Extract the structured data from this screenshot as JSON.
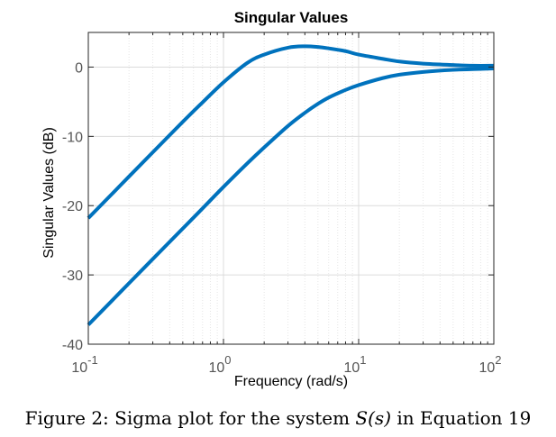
{
  "chart_data": {
    "type": "line",
    "title": "Singular Values",
    "xlabel": "Frequency (rad/s)",
    "ylabel": "Singular Values (dB)",
    "x_scale": "log",
    "xlim": [
      0.1,
      100
    ],
    "ylim": [
      -40,
      5
    ],
    "x_ticks": [
      {
        "value": 0.1,
        "base": "10",
        "exp": "-1"
      },
      {
        "value": 1,
        "base": "10",
        "exp": "0"
      },
      {
        "value": 10,
        "base": "10",
        "exp": "1"
      },
      {
        "value": 100,
        "base": "10",
        "exp": "2"
      }
    ],
    "y_ticks": [
      {
        "value": 0,
        "label": "0"
      },
      {
        "value": -10,
        "label": "-10"
      },
      {
        "value": -20,
        "label": "-20"
      },
      {
        "value": -30,
        "label": "-30"
      },
      {
        "value": -40,
        "label": "-40"
      }
    ],
    "grid": true,
    "minor_grid": true,
    "line_color": "#0072BD",
    "series": [
      {
        "x": [
          0.1,
          0.15,
          0.2,
          0.3,
          0.5,
          0.7,
          1,
          1.5,
          2,
          3,
          4,
          5,
          6,
          8,
          10,
          15,
          20,
          30,
          50,
          70,
          100
        ],
        "values": [
          -21.8,
          -18.3,
          -15.8,
          -12.3,
          -7.9,
          -5.1,
          -2.2,
          0.6,
          1.8,
          2.8,
          3.0,
          2.9,
          2.7,
          2.3,
          1.8,
          1.2,
          0.8,
          0.5,
          0.3,
          0.2,
          0.2
        ]
      },
      {
        "x": [
          0.1,
          0.15,
          0.2,
          0.3,
          0.5,
          0.7,
          1,
          1.5,
          2,
          3,
          4,
          5,
          6,
          8,
          10,
          15,
          20,
          30,
          50,
          70,
          100
        ],
        "values": [
          -37.2,
          -33.7,
          -31.2,
          -27.7,
          -23.3,
          -20.4,
          -17.3,
          -13.9,
          -11.6,
          -8.5,
          -6.6,
          -5.3,
          -4.4,
          -3.3,
          -2.6,
          -1.6,
          -1.1,
          -0.7,
          -0.4,
          -0.3,
          -0.2
        ]
      }
    ]
  },
  "caption": {
    "prefix": "Figure 2: Sigma plot for the system ",
    "math": "S(s)",
    "suffix": " in Equation 19"
  }
}
